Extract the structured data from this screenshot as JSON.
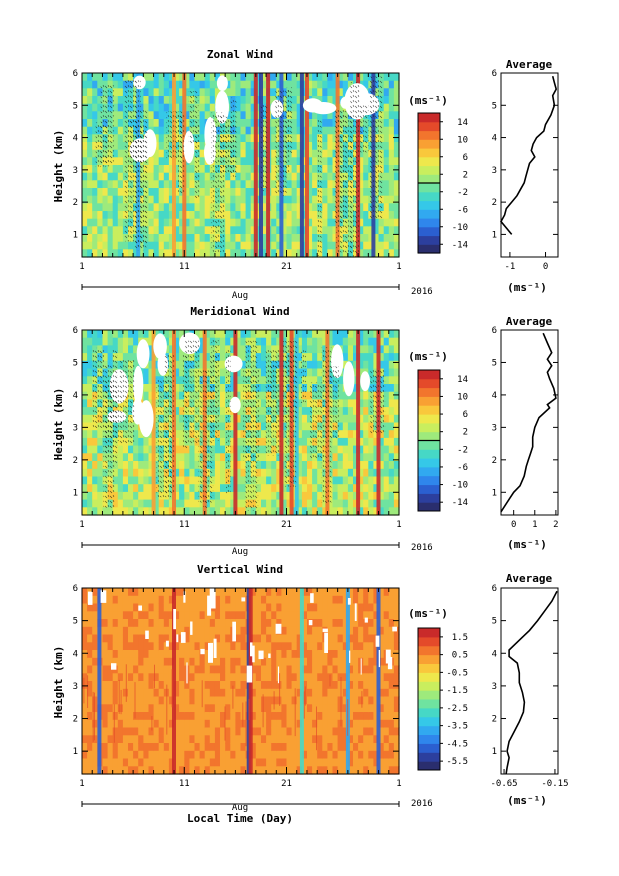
{
  "figure": {
    "xlabel": "Local Time (Day)",
    "x_ticks": [
      "1",
      "11",
      "21",
      "1"
    ],
    "month_label": "Aug",
    "year_label": "2016",
    "colorbar_unit": "(ms⁻¹)",
    "avg_unit": "(ms⁻¹)",
    "avg_title": "Average",
    "ylabel": "Height (km)",
    "y_ticks": [
      "1",
      "2",
      "3",
      "4",
      "5",
      "6"
    ]
  },
  "colors": {
    "palette": [
      "#2a2e6e",
      "#2c3f9e",
      "#2b5fd0",
      "#2f86ec",
      "#31a9f0",
      "#35c8e8",
      "#46d8c6",
      "#6fe3a0",
      "#9eea7c",
      "#c9ee5e",
      "#eee84c",
      "#f9c83c",
      "#f9a033",
      "#f2752d",
      "#e44a2a",
      "#c92a2a"
    ],
    "vertical_background": "#f9c83c"
  },
  "chart_data": [
    {
      "type": "heatmap",
      "title": "Zonal Wind",
      "colorbar_ticks": [
        "14",
        "10",
        "6",
        "2",
        "-2",
        "-6",
        "-10",
        "-14"
      ],
      "colorbar_range": [
        -16,
        16
      ],
      "xlim": [
        1,
        32
      ],
      "ylim": [
        0.3,
        6
      ],
      "description": "",
      "streaks": [
        {
          "day": 6.5,
          "value": -8
        },
        {
          "day": 10,
          "value": 9
        },
        {
          "day": 11,
          "value": 10
        },
        {
          "day": 18,
          "value": 16
        },
        {
          "day": 18.5,
          "value": -14
        },
        {
          "day": 19.2,
          "value": 14
        },
        {
          "day": 20.5,
          "value": -12
        },
        {
          "day": 22.5,
          "value": -14
        },
        {
          "day": 23,
          "value": 12
        },
        {
          "day": 26,
          "value": 10
        },
        {
          "day": 28,
          "value": 16
        },
        {
          "day": 29.5,
          "value": -14
        }
      ]
    },
    {
      "type": "line",
      "title": "Average",
      "x_ticks": [
        "-1",
        "0"
      ],
      "xlim": [
        -1.25,
        0.35
      ],
      "ylim": [
        0.3,
        6
      ],
      "x": [
        0.2,
        0.25,
        0.3,
        0.2,
        0.25,
        0.15,
        0.0,
        -0.05,
        -0.25,
        -0.35,
        -0.4,
        -0.3,
        -0.45,
        -0.5,
        -0.55,
        -0.6,
        -0.7,
        -0.8,
        -0.95,
        -1.1,
        -1.15,
        -1.25,
        -1.1,
        -0.95
      ],
      "y": [
        5.9,
        5.7,
        5.5,
        5.3,
        5.0,
        4.7,
        4.4,
        4.2,
        4.0,
        3.8,
        3.6,
        3.4,
        3.2,
        3.0,
        2.8,
        2.6,
        2.4,
        2.2,
        2.0,
        1.8,
        1.6,
        1.4,
        1.2,
        1.0
      ]
    },
    {
      "type": "heatmap",
      "title": "Meridional Wind",
      "colorbar_ticks": [
        "14",
        "10",
        "6",
        "2",
        "-2",
        "-6",
        "-10",
        "-14"
      ],
      "colorbar_range": [
        -16,
        16
      ],
      "xlim": [
        1,
        32
      ],
      "ylim": [
        0.3,
        6
      ],
      "streaks": [
        {
          "day": 8,
          "value": 8
        },
        {
          "day": 10,
          "value": 10
        },
        {
          "day": 13,
          "value": 10
        },
        {
          "day": 16,
          "value": 14
        },
        {
          "day": 20.5,
          "value": 16
        },
        {
          "day": 21.5,
          "value": 12
        },
        {
          "day": 22,
          "value": -6
        },
        {
          "day": 25,
          "value": 10
        },
        {
          "day": 28,
          "value": 14
        },
        {
          "day": 30,
          "value": 14
        }
      ]
    },
    {
      "type": "line",
      "title": "Average",
      "x_ticks": [
        "0",
        "1",
        "2"
      ],
      "xlim": [
        -0.6,
        2.1
      ],
      "ylim": [
        0.3,
        6
      ],
      "x": [
        1.4,
        1.6,
        1.8,
        1.6,
        1.8,
        1.6,
        1.7,
        1.9,
        2.0,
        1.6,
        1.7,
        1.2,
        1.0,
        0.9,
        0.9,
        0.8,
        0.7,
        0.6,
        0.5,
        0.3,
        0.0,
        -0.2,
        -0.4,
        -0.6
      ],
      "y": [
        5.9,
        5.6,
        5.3,
        5.1,
        4.9,
        4.7,
        4.5,
        4.2,
        3.9,
        3.7,
        3.6,
        3.3,
        3.0,
        2.7,
        2.4,
        2.2,
        2.0,
        1.8,
        1.5,
        1.2,
        1.0,
        0.8,
        0.6,
        0.4
      ]
    },
    {
      "type": "heatmap",
      "title": "Vertical Wind",
      "colorbar_ticks": [
        "1.5",
        "0.5",
        "-0.5",
        "-1.5",
        "-2.5",
        "-3.5",
        "-4.5",
        "-5.5"
      ],
      "colorbar_range": [
        -6,
        2
      ],
      "xlim": [
        1,
        32
      ],
      "ylim": [
        0.3,
        6
      ],
      "streaks": [
        {
          "day": 2.7,
          "value": -5
        },
        {
          "day": 10,
          "value": 1.5
        },
        {
          "day": 17.3,
          "value": -5.5
        },
        {
          "day": 17.5,
          "value": 1.8
        },
        {
          "day": 22.5,
          "value": -3
        },
        {
          "day": 27,
          "value": -4
        },
        {
          "day": 30,
          "value": -5
        }
      ]
    },
    {
      "type": "line",
      "title": "Average",
      "x_ticks": [
        "-0.65",
        "-0.15"
      ],
      "xlim": [
        -0.68,
        -0.12
      ],
      "ylim": [
        0.3,
        6
      ],
      "x": [
        -0.13,
        -0.18,
        -0.25,
        -0.32,
        -0.4,
        -0.5,
        -0.6,
        -0.6,
        -0.52,
        -0.5,
        -0.5,
        -0.47,
        -0.45,
        -0.46,
        -0.5,
        -0.55,
        -0.6,
        -0.62,
        -0.6,
        -0.62,
        -0.63
      ],
      "y": [
        5.9,
        5.6,
        5.3,
        5.0,
        4.7,
        4.4,
        4.1,
        3.9,
        3.7,
        3.4,
        3.1,
        2.8,
        2.5,
        2.2,
        1.9,
        1.6,
        1.3,
        1.0,
        0.8,
        0.5,
        0.3
      ]
    }
  ]
}
